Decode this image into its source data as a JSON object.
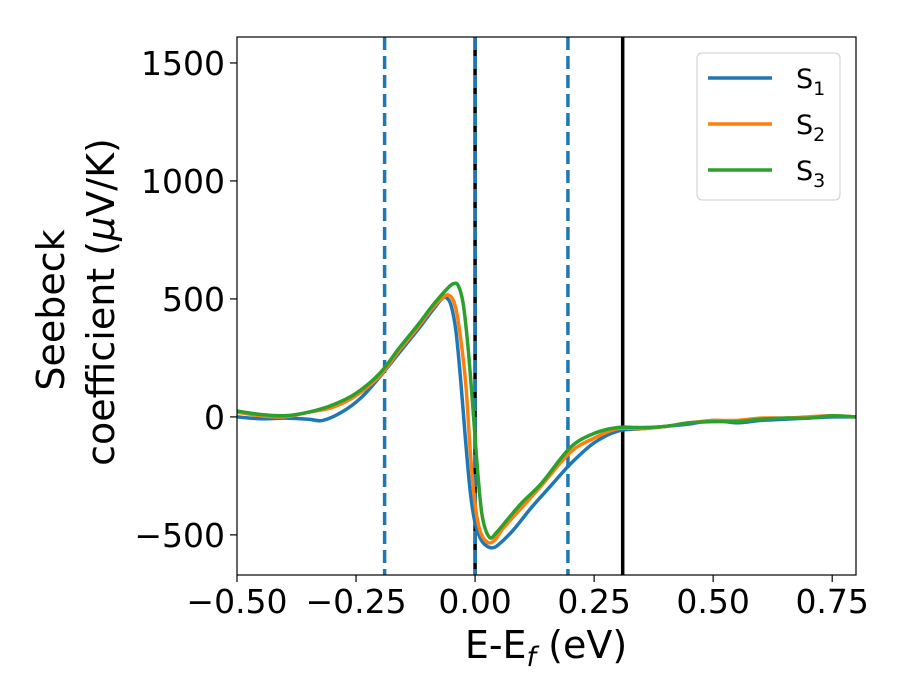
{
  "chart_data": {
    "type": "line",
    "xlabel": "E-E",
    "xlabel_sub": "f",
    "xlabel_suffix": " (eV)",
    "ylabel_line1": "Seebeck",
    "ylabel_line2_pre": "coefficient  (",
    "ylabel_mu": "μ",
    "ylabel_line2_post": "V/K)",
    "xlim": [
      -0.5,
      0.8
    ],
    "ylim": [
      -670,
      1610
    ],
    "xticks": [
      -0.5,
      -0.25,
      0.0,
      0.25,
      0.5,
      0.75
    ],
    "xtick_labels": [
      "−0.50",
      "−0.25",
      "0.00",
      "0.25",
      "0.50",
      "0.75"
    ],
    "yticks": [
      -500,
      0,
      500,
      1000,
      1500
    ],
    "ytick_labels": [
      "−500",
      "0",
      "500",
      "1000",
      "1500"
    ],
    "grid": false,
    "legend_position": "top-right",
    "series": [
      {
        "name": "S",
        "sub": "1",
        "color": "#1f77b4",
        "points": [
          [
            -0.5,
            0
          ],
          [
            -0.45,
            -8
          ],
          [
            -0.4,
            -5
          ],
          [
            -0.35,
            -10
          ],
          [
            -0.32,
            -15
          ],
          [
            -0.28,
            20
          ],
          [
            -0.24,
            80
          ],
          [
            -0.2,
            170
          ],
          [
            -0.16,
            270
          ],
          [
            -0.12,
            370
          ],
          [
            -0.09,
            450
          ],
          [
            -0.07,
            500
          ],
          [
            -0.06,
            505
          ],
          [
            -0.05,
            470
          ],
          [
            -0.04,
            360
          ],
          [
            -0.03,
            150
          ],
          [
            -0.02,
            -100
          ],
          [
            -0.01,
            -320
          ],
          [
            0.0,
            -450
          ],
          [
            0.01,
            -510
          ],
          [
            0.02,
            -540
          ],
          [
            0.035,
            -555
          ],
          [
            0.05,
            -540
          ],
          [
            0.08,
            -480
          ],
          [
            0.12,
            -380
          ],
          [
            0.16,
            -290
          ],
          [
            0.2,
            -200
          ],
          [
            0.25,
            -110
          ],
          [
            0.3,
            -60
          ],
          [
            0.35,
            -50
          ],
          [
            0.4,
            -40
          ],
          [
            0.45,
            -30
          ],
          [
            0.5,
            -15
          ],
          [
            0.55,
            -25
          ],
          [
            0.6,
            -15
          ],
          [
            0.65,
            -10
          ],
          [
            0.7,
            -5
          ],
          [
            0.75,
            0
          ],
          [
            0.8,
            0
          ]
        ]
      },
      {
        "name": "S",
        "sub": "2",
        "color": "#ff7f0e",
        "points": [
          [
            -0.5,
            20
          ],
          [
            -0.45,
            5
          ],
          [
            -0.4,
            0
          ],
          [
            -0.35,
            20
          ],
          [
            -0.3,
            40
          ],
          [
            -0.25,
            90
          ],
          [
            -0.2,
            175
          ],
          [
            -0.16,
            280
          ],
          [
            -0.12,
            380
          ],
          [
            -0.09,
            460
          ],
          [
            -0.065,
            510
          ],
          [
            -0.055,
            515
          ],
          [
            -0.045,
            490
          ],
          [
            -0.035,
            400
          ],
          [
            -0.02,
            150
          ],
          [
            -0.01,
            -150
          ],
          [
            0.0,
            -370
          ],
          [
            0.01,
            -480
          ],
          [
            0.025,
            -530
          ],
          [
            0.04,
            -525
          ],
          [
            0.06,
            -470
          ],
          [
            0.1,
            -380
          ],
          [
            0.14,
            -290
          ],
          [
            0.2,
            -150
          ],
          [
            0.25,
            -90
          ],
          [
            0.3,
            -50
          ],
          [
            0.35,
            -50
          ],
          [
            0.4,
            -40
          ],
          [
            0.45,
            -25
          ],
          [
            0.5,
            -15
          ],
          [
            0.55,
            -15
          ],
          [
            0.6,
            -5
          ],
          [
            0.65,
            -5
          ],
          [
            0.7,
            0
          ],
          [
            0.75,
            5
          ],
          [
            0.8,
            0
          ]
        ]
      },
      {
        "name": "S",
        "sub": "3",
        "color": "#2ca02c",
        "points": [
          [
            -0.5,
            25
          ],
          [
            -0.45,
            10
          ],
          [
            -0.4,
            5
          ],
          [
            -0.35,
            20
          ],
          [
            -0.3,
            50
          ],
          [
            -0.25,
            100
          ],
          [
            -0.2,
            185
          ],
          [
            -0.16,
            290
          ],
          [
            -0.12,
            390
          ],
          [
            -0.09,
            470
          ],
          [
            -0.06,
            540
          ],
          [
            -0.045,
            565
          ],
          [
            -0.035,
            555
          ],
          [
            -0.025,
            480
          ],
          [
            -0.015,
            300
          ],
          [
            -0.005,
            50
          ],
          [
            0.005,
            -220
          ],
          [
            0.015,
            -420
          ],
          [
            0.03,
            -510
          ],
          [
            0.045,
            -490
          ],
          [
            0.07,
            -430
          ],
          [
            0.1,
            -360
          ],
          [
            0.14,
            -280
          ],
          [
            0.2,
            -130
          ],
          [
            0.25,
            -70
          ],
          [
            0.3,
            -45
          ],
          [
            0.35,
            -45
          ],
          [
            0.4,
            -40
          ],
          [
            0.45,
            -25
          ],
          [
            0.5,
            -20
          ],
          [
            0.55,
            -20
          ],
          [
            0.6,
            -10
          ],
          [
            0.65,
            -5
          ],
          [
            0.7,
            -5
          ],
          [
            0.75,
            5
          ],
          [
            0.8,
            0
          ]
        ]
      }
    ],
    "vlines": [
      {
        "x": -0.19,
        "color": "#1f77b4",
        "style": "dashed"
      },
      {
        "x": 0.0,
        "color": "#000000",
        "style": "solid"
      },
      {
        "x": 0.0,
        "color": "#1f77b4",
        "style": "dashed"
      },
      {
        "x": 0.195,
        "color": "#1f77b4",
        "style": "dashed"
      },
      {
        "x": 0.31,
        "color": "#000000",
        "style": "solid"
      }
    ]
  }
}
